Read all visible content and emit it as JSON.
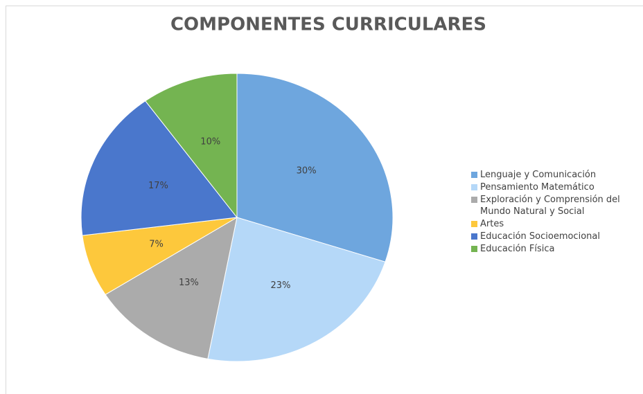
{
  "chart_data": {
    "type": "pie",
    "title": "COMPONENTES CURRICULARES",
    "categories": [
      "Lenguaje y Comunicación",
      "Pensamiento Matemático",
      "Exploración y Comprensión del Mundo Natural y Social",
      "Artes",
      "Educación Socioemocional",
      "Educación Física"
    ],
    "values": [
      30,
      23,
      13,
      7,
      17,
      10
    ],
    "value_labels": [
      "30%",
      "23%",
      "13%",
      "7%",
      "17%",
      "10%"
    ],
    "colors": [
      "#6ea6de",
      "#b5d8f8",
      "#ababab",
      "#fdc83c",
      "#4a77cc",
      "#74b451"
    ],
    "legend": "right"
  }
}
